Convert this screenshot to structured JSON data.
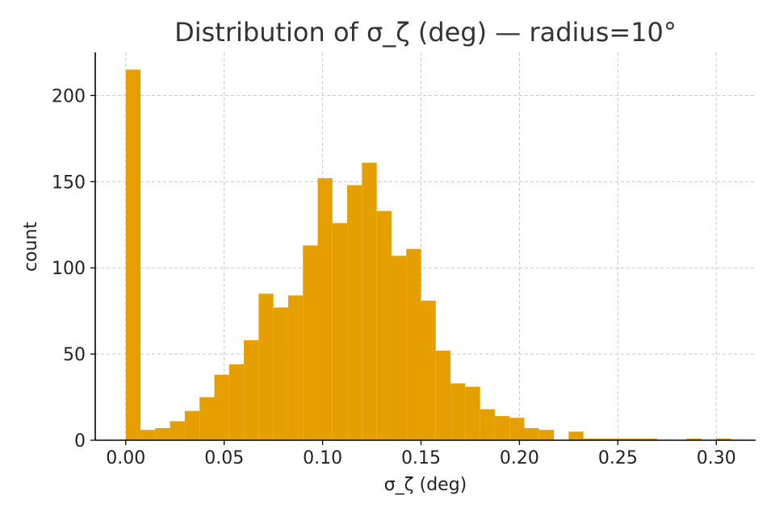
{
  "chart_data": {
    "type": "bar",
    "title": "Distribution of σ_ζ (deg) — radius=10°",
    "xlabel": "σ_ζ (deg)",
    "ylabel": "count",
    "xlim": [
      -0.0155,
      0.32
    ],
    "ylim": [
      0,
      225
    ],
    "xticks": [
      "0.00",
      "0.05",
      "0.10",
      "0.15",
      "0.20",
      "0.25",
      "0.30"
    ],
    "xtick_values": [
      0,
      0.05,
      0.1,
      0.15,
      0.2,
      0.25,
      0.3
    ],
    "yticks": [
      "0",
      "50",
      "100",
      "150",
      "200"
    ],
    "ytick_values": [
      0,
      50,
      100,
      150,
      200
    ],
    "grid": true,
    "bar_color": "#E69F00",
    "bin_width": 0.0075,
    "bin_starts": [
      0.0,
      0.0075,
      0.015,
      0.0225,
      0.03,
      0.0375,
      0.045,
      0.0525,
      0.06,
      0.0675,
      0.075,
      0.0825,
      0.09,
      0.0975,
      0.105,
      0.1125,
      0.12,
      0.1275,
      0.135,
      0.1425,
      0.15,
      0.1575,
      0.165,
      0.1725,
      0.18,
      0.1875,
      0.195,
      0.2025,
      0.21,
      0.2175,
      0.225,
      0.2325,
      0.24,
      0.2475,
      0.255,
      0.2625,
      0.27,
      0.2775,
      0.285,
      0.2925,
      0.3
    ],
    "counts": [
      215,
      6,
      7,
      11,
      17,
      25,
      38,
      44,
      58,
      85,
      77,
      84,
      113,
      152,
      126,
      148,
      161,
      133,
      107,
      111,
      81,
      52,
      33,
      31,
      18,
      14,
      13,
      7,
      6,
      0,
      5,
      1,
      1,
      1,
      1,
      1,
      0,
      0,
      1,
      0,
      1
    ]
  }
}
